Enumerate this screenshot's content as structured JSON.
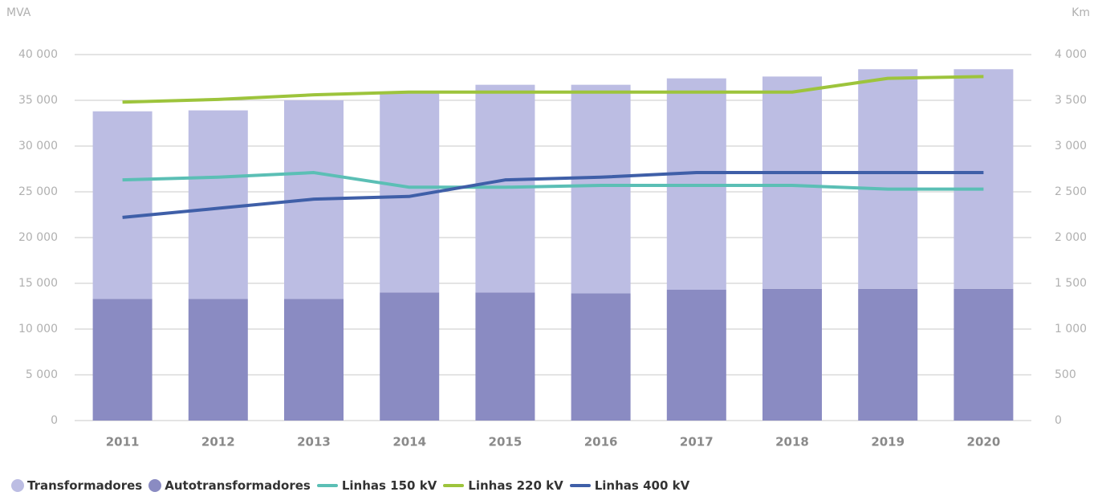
{
  "chart_data": {
    "type": "bar",
    "ylabel": "MVA",
    "y2label": "Km",
    "categories": [
      "2011",
      "2012",
      "2013",
      "2014",
      "2015",
      "2016",
      "2017",
      "2018",
      "2019",
      "2020"
    ],
    "series": [
      {
        "name": "Transformadores",
        "type": "bar",
        "color": "#bcbde3",
        "values": [
          20500,
          20600,
          21700,
          21800,
          22700,
          22800,
          23100,
          23200,
          24000,
          24000
        ]
      },
      {
        "name": "Autotransformadores",
        "type": "bar",
        "color": "#8a8bc2",
        "values": [
          13300,
          13300,
          13300,
          14000,
          14000,
          13900,
          14300,
          14400,
          14400,
          14400
        ]
      },
      {
        "name": "Linhas 150 kV",
        "type": "line",
        "axis": "y2",
        "color": "#5bbfb5",
        "values": [
          2630,
          2660,
          2710,
          2550,
          2550,
          2570,
          2570,
          2570,
          2530,
          2530
        ]
      },
      {
        "name": "Linhas 220 kV",
        "type": "line",
        "axis": "y2",
        "color": "#9dc43c",
        "values": [
          3480,
          3510,
          3560,
          3590,
          3590,
          3590,
          3590,
          3590,
          3740,
          3760
        ]
      },
      {
        "name": "Linhas 400 kV",
        "type": "line",
        "axis": "y2",
        "color": "#3f5fa8",
        "values": [
          2220,
          2320,
          2420,
          2450,
          2630,
          2660,
          2710,
          2710,
          2710,
          2710
        ]
      }
    ],
    "ylim": [
      0,
      40000
    ],
    "yticks": [
      0,
      {
        "value": 5000,
        "label": "5 000"
      },
      {
        "value": 10000,
        "label": "10 000"
      },
      {
        "value": 15000,
        "label": "15 000"
      },
      {
        "value": 20000,
        "label": "20 000"
      },
      {
        "value": 25000,
        "label": "25 000"
      },
      {
        "value": 30000,
        "label": "30 000"
      },
      {
        "value": 35000,
        "label": "35 000"
      },
      {
        "value": 40000,
        "label": "40 000"
      }
    ],
    "y2lim": [
      0,
      4000
    ],
    "y2ticks": [
      0,
      500,
      {
        "value": 1000,
        "label": "1 000"
      },
      {
        "value": 1500,
        "label": "1 500"
      },
      {
        "value": 2000,
        "label": "2 000"
      },
      {
        "value": 2500,
        "label": "2 500"
      },
      {
        "value": 3000,
        "label": "3 000"
      },
      {
        "value": 3500,
        "label": "3 500"
      },
      {
        "value": 4000,
        "label": "4 000"
      }
    ],
    "grid": true,
    "legend": "bottom-left"
  }
}
